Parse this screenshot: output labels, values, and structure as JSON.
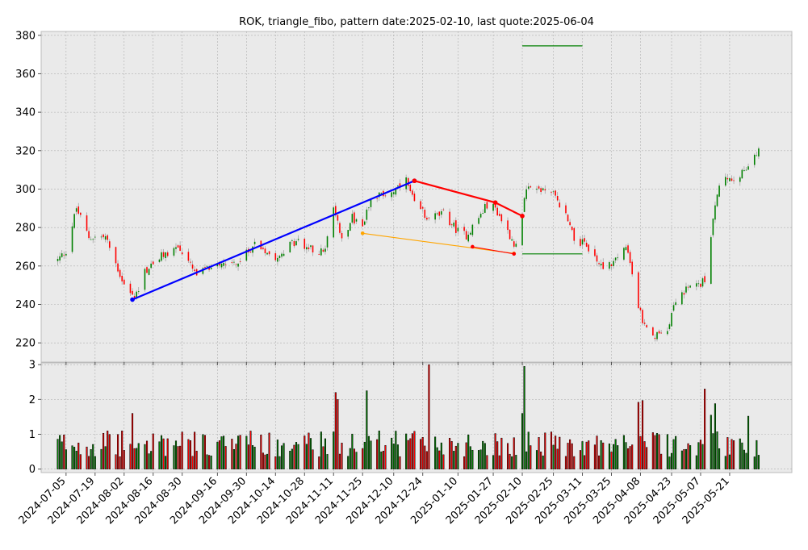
{
  "title": "ROK, triangle_fibo, pattern date:2025-02-10, last quote:2025-06-04",
  "chart_data": {
    "type": "candlestick",
    "price_panel": {
      "ylim": [
        210,
        382
      ],
      "yticks": [
        220,
        240,
        260,
        280,
        300,
        320,
        340,
        360,
        380
      ]
    },
    "volume_panel": {
      "ylim": [
        -0.1,
        3.05
      ],
      "yticks": [
        0,
        1,
        2,
        3
      ]
    },
    "xlim": [
      "2024-06-23",
      "2025-06-20"
    ],
    "x_tick_labels": [
      "2024-07-05",
      "2024-07-19",
      "2024-08-02",
      "2024-08-16",
      "2024-08-30",
      "2024-09-16",
      "2024-09-30",
      "2024-10-14",
      "2024-10-28",
      "2024-11-11",
      "2024-11-25",
      "2024-12-10",
      "2024-12-24",
      "2025-01-10",
      "2025-01-27",
      "2025-02-10",
      "2025-02-25",
      "2025-03-11",
      "2025-03-25",
      "2025-04-08",
      "2025-04-23",
      "2025-05-07",
      "2025-05-21"
    ],
    "anchors": [
      [
        "2024-07-01",
        263
      ],
      [
        "2024-07-05",
        268
      ],
      [
        "2024-07-10",
        290
      ],
      [
        "2024-07-16",
        275
      ],
      [
        "2024-07-24",
        275
      ],
      [
        "2024-08-02",
        250
      ],
      [
        "2024-08-07",
        243
      ],
      [
        "2024-08-12",
        257
      ],
      [
        "2024-08-20",
        265
      ],
      [
        "2024-08-28",
        270
      ],
      [
        "2024-09-06",
        255
      ],
      [
        "2024-09-16",
        262
      ],
      [
        "2024-09-27",
        262
      ],
      [
        "2024-10-04",
        272
      ],
      [
        "2024-10-14",
        265
      ],
      [
        "2024-10-24",
        273
      ],
      [
        "2024-11-01",
        268
      ],
      [
        "2024-11-07",
        268
      ],
      [
        "2024-11-11",
        290
      ],
      [
        "2024-11-15",
        275
      ],
      [
        "2024-11-20",
        285
      ],
      [
        "2024-11-25",
        280
      ],
      [
        "2024-11-29",
        296
      ],
      [
        "2024-12-05",
        297
      ],
      [
        "2024-12-12",
        300
      ],
      [
        "2024-12-16",
        304
      ],
      [
        "2024-12-20",
        292
      ],
      [
        "2024-12-27",
        285
      ],
      [
        "2025-01-03",
        287
      ],
      [
        "2025-01-10",
        278
      ],
      [
        "2025-01-14",
        276
      ],
      [
        "2025-01-20",
        285
      ],
      [
        "2025-01-24",
        292
      ],
      [
        "2025-01-28",
        290
      ],
      [
        "2025-02-03",
        278
      ],
      [
        "2025-02-07",
        270
      ],
      [
        "2025-02-10",
        286
      ],
      [
        "2025-02-12",
        302
      ],
      [
        "2025-02-18",
        300
      ],
      [
        "2025-02-24",
        299
      ],
      [
        "2025-02-28",
        292
      ],
      [
        "2025-03-04",
        285
      ],
      [
        "2025-03-07",
        275
      ],
      [
        "2025-03-13",
        270
      ],
      [
        "2025-03-20",
        260
      ],
      [
        "2025-03-26",
        262
      ],
      [
        "2025-04-01",
        270
      ],
      [
        "2025-04-04",
        255
      ],
      [
        "2025-04-07",
        240
      ],
      [
        "2025-04-09",
        230
      ],
      [
        "2025-04-14",
        222
      ],
      [
        "2025-04-21",
        228
      ],
      [
        "2025-04-25",
        243
      ],
      [
        "2025-05-01",
        248
      ],
      [
        "2025-05-09",
        252
      ],
      [
        "2025-05-13",
        283
      ],
      [
        "2025-05-16",
        303
      ],
      [
        "2025-05-22",
        306
      ],
      [
        "2025-05-29",
        310
      ],
      [
        "2025-06-04",
        319
      ]
    ],
    "volume_spikes": [
      [
        "2024-08-06",
        1.6
      ],
      [
        "2024-11-12",
        2.2
      ],
      [
        "2024-11-13",
        2.0
      ],
      [
        "2024-11-27",
        2.25
      ],
      [
        "2024-12-27",
        3.0
      ],
      [
        "2025-02-10",
        1.6
      ],
      [
        "2025-02-11",
        2.95
      ],
      [
        "2025-04-07",
        1.92
      ],
      [
        "2025-04-09",
        1.97
      ],
      [
        "2025-05-09",
        2.3
      ],
      [
        "2025-05-12",
        1.55
      ],
      [
        "2025-05-14",
        1.88
      ],
      [
        "2025-05-30",
        1.52
      ]
    ],
    "pattern_lines": [
      {
        "color": "#0000ff",
        "points": [
          [
            "2024-08-06",
            242.5
          ],
          [
            "2024-12-20",
            304.3
          ]
        ]
      },
      {
        "color": "#ff0000",
        "points": [
          [
            "2024-12-20",
            304.3
          ],
          [
            "2025-01-28",
            293
          ],
          [
            "2025-02-10",
            286
          ]
        ]
      },
      {
        "color": "#ffa500",
        "points": [
          [
            "2024-11-25",
            277
          ],
          [
            "2025-02-06",
            266.5
          ]
        ]
      },
      {
        "color": "#ff0000",
        "points": [
          [
            "2025-01-17",
            270
          ],
          [
            "2025-02-06",
            266.3
          ]
        ]
      }
    ],
    "level_lines": [
      {
        "color": "#008000",
        "y": 374.5,
        "x": [
          "2025-02-10",
          "2025-03-11"
        ]
      },
      {
        "color": "#008000",
        "y": 266.3,
        "x": [
          "2025-02-10",
          "2025-03-11"
        ]
      }
    ],
    "colors": {
      "up": "#008000",
      "down": "#ff0000",
      "panel_bg": "#eaeaea",
      "grid": "#b0b0b0"
    }
  }
}
